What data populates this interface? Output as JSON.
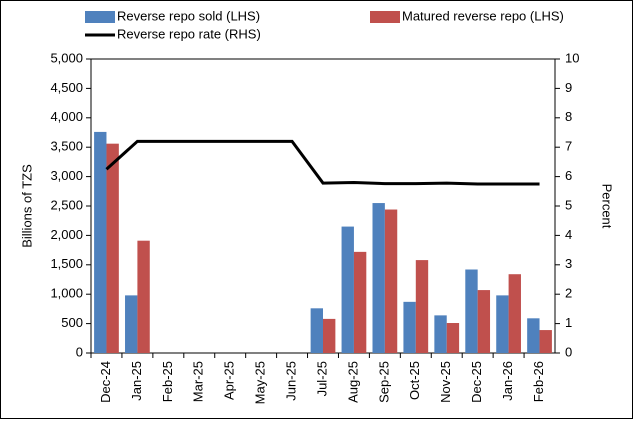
{
  "chart_data": {
    "type": "bar-line",
    "categories": [
      "Dec-24",
      "Jan-25",
      "Feb-25",
      "Mar-25",
      "Apr-25",
      "May-25",
      "Jun-25",
      "Jul-25",
      "Aug-25",
      "Sep-25",
      "Oct-25",
      "Nov-25",
      "Dec-25",
      "Jan-26",
      "Feb-26"
    ],
    "y_label": "Billions of TZS",
    "y2_label": "Percent",
    "ylim": [
      0,
      5000
    ],
    "yticks": [
      0,
      500,
      {
        "value": 1000,
        "label": "1,000"
      },
      {
        "value": 1500,
        "label": "1,500"
      },
      {
        "value": 2000,
        "label": "2,000"
      },
      {
        "value": 2500,
        "label": "2,500"
      },
      {
        "value": 3000,
        "label": "3,000"
      },
      {
        "value": 3500,
        "label": "3,500"
      },
      {
        "value": 4000,
        "label": "4,000"
      },
      {
        "value": 4500,
        "label": "4,500"
      },
      {
        "value": 5000,
        "label": "5,000"
      }
    ],
    "y2lim": [
      0,
      10
    ],
    "y2ticks": [
      0,
      1,
      2,
      3,
      4,
      5,
      6,
      7,
      8,
      9,
      10
    ],
    "series": [
      {
        "name": "Reverse repo sold (LHS)",
        "type": "bar",
        "color": "#4f81bd",
        "values": [
          3760,
          980,
          0,
          0,
          0,
          0,
          0,
          760,
          2150,
          2550,
          870,
          640,
          1420,
          980,
          590
        ]
      },
      {
        "name": "Matured reverse repo  (LHS)",
        "type": "bar",
        "color": "#c0504d",
        "values": [
          3560,
          1910,
          0,
          0,
          0,
          0,
          0,
          580,
          1720,
          2440,
          1580,
          510,
          1070,
          1340,
          390
        ]
      },
      {
        "name": "Reverse repo rate (RHS)",
        "type": "line",
        "axis": "y2",
        "color": "#000000",
        "values": [
          6.25,
          7.2,
          7.2,
          7.2,
          7.2,
          7.2,
          7.2,
          5.78,
          5.8,
          5.76,
          5.76,
          5.78,
          5.75,
          5.75,
          5.75
        ]
      }
    ]
  }
}
